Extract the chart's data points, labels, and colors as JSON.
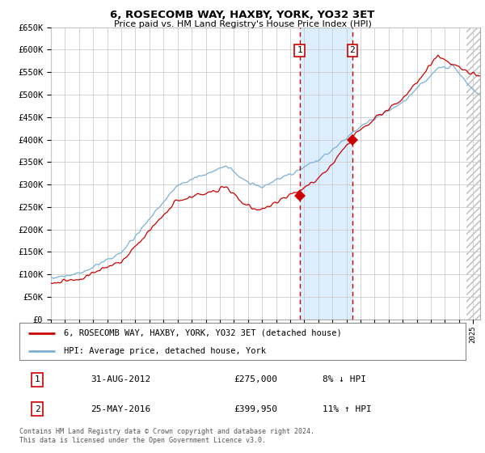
{
  "title": "6, ROSECOMB WAY, HAXBY, YORK, YO32 3ET",
  "subtitle": "Price paid vs. HM Land Registry's House Price Index (HPI)",
  "ylim": [
    0,
    650000
  ],
  "yticks": [
    0,
    50000,
    100000,
    150000,
    200000,
    250000,
    300000,
    350000,
    400000,
    450000,
    500000,
    550000,
    600000,
    650000
  ],
  "ytick_labels": [
    "£0",
    "£50K",
    "£100K",
    "£150K",
    "£200K",
    "£250K",
    "£300K",
    "£350K",
    "£400K",
    "£450K",
    "£500K",
    "£550K",
    "£600K",
    "£650K"
  ],
  "xlim_start": 1995.0,
  "xlim_end": 2025.5,
  "transaction1_x": 2012.67,
  "transaction1_y": 275000,
  "transaction2_x": 2016.42,
  "transaction2_y": 399950,
  "line_color_red": "#cc0000",
  "line_color_blue": "#7ab0d4",
  "shaded_color": "#ddeeff",
  "vline_color": "#cc0000",
  "legend_label_red": "6, ROSECOMB WAY, HAXBY, YORK, YO32 3ET (detached house)",
  "legend_label_blue": "HPI: Average price, detached house, York",
  "table_row1_num": "1",
  "table_row1_date": "31-AUG-2012",
  "table_row1_price": "£275,000",
  "table_row1_hpi": "8% ↓ HPI",
  "table_row2_num": "2",
  "table_row2_date": "25-MAY-2016",
  "table_row2_price": "£399,950",
  "table_row2_hpi": "11% ↑ HPI",
  "footer": "Contains HM Land Registry data © Crown copyright and database right 2024.\nThis data is licensed under the Open Government Licence v3.0.",
  "bg_color": "#ffffff",
  "grid_color": "#cccccc",
  "hatch_start": 2024.5
}
